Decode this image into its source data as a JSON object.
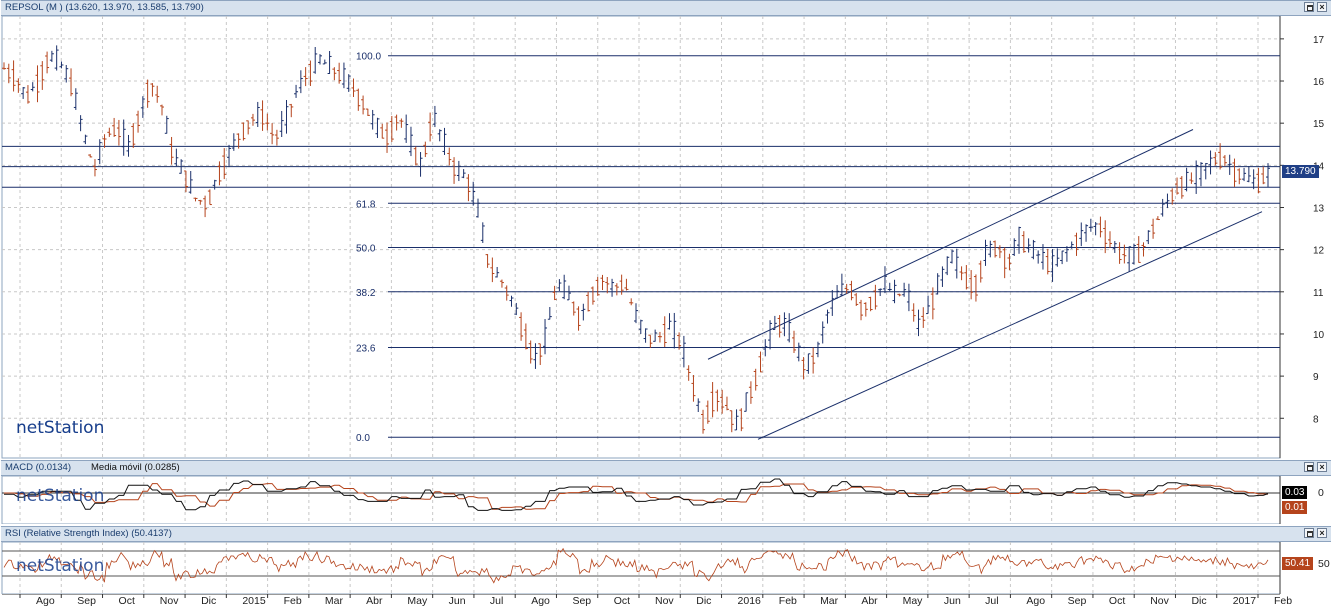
{
  "panels": {
    "price": {
      "title": "REPSOL (M ) (13.620, 13.970, 13.585, 13.790)",
      "last_price": "13.790",
      "logo": "netStation"
    },
    "macd": {
      "title": "MACD (0.0134)",
      "title2": "Media móvil (0.0285)",
      "value1": "0.03",
      "value2": "0.01",
      "axis_label": "0"
    },
    "rsi": {
      "title": "RSI (Relative Strength Index) (50.4137)",
      "value": "50.41",
      "axis_label": "50"
    }
  },
  "colors": {
    "up": "#1a2f6a",
    "down": "#b5441c",
    "macd": "#111111",
    "signal": "#b5441c",
    "rsi": "#b5441c",
    "lines": "#1a2f6a",
    "header": "#d7e2ee"
  },
  "icons": [
    "maximize-icon",
    "close-icon"
  ],
  "chart_data": {
    "type": "line",
    "title": "REPSOL (M ) (13.620, 13.970, 13.585, 13.790)",
    "y_ticks": [
      8,
      9,
      10,
      11,
      12,
      13,
      14,
      15,
      16,
      17
    ],
    "ylim": [
      7.2,
      17.4
    ],
    "x_tick_labels": [
      "Ago",
      "Sep",
      "Oct",
      "Nov",
      "Dic",
      "2015",
      "Feb",
      "Mar",
      "Abr",
      "May",
      "Jun",
      "Jul",
      "Ago",
      "Sep",
      "Oct",
      "Nov",
      "Dic",
      "2016",
      "Feb",
      "Mar",
      "Abr",
      "May",
      "Jun",
      "Jul",
      "Ago",
      "Sep",
      "Oct",
      "Nov",
      "Dic",
      "2017",
      "Feb"
    ],
    "fibonacci": [
      {
        "label": "100.0",
        "value": 16.6
      },
      {
        "label": "61.8",
        "value": 13.1
      },
      {
        "label": "50.0",
        "value": 12.05
      },
      {
        "label": "38.2",
        "value": 11.0
      },
      {
        "label": "23.6",
        "value": 9.68
      },
      {
        "label": "0.0",
        "value": 7.55
      }
    ],
    "horizontal_levels": [
      14.45,
      13.97,
      13.48
    ],
    "price_path": [
      [
        0,
        16.3
      ],
      [
        1,
        16.1
      ],
      [
        2,
        15.6
      ],
      [
        3,
        16.0
      ],
      [
        4,
        16.6
      ],
      [
        5,
        16.4
      ],
      [
        6,
        15.9
      ],
      [
        7,
        14.8
      ],
      [
        8,
        13.9
      ],
      [
        9,
        14.7
      ],
      [
        10,
        14.9
      ],
      [
        11,
        14.4
      ],
      [
        12,
        15.2
      ],
      [
        13,
        16.0
      ],
      [
        14,
        15.4
      ],
      [
        15,
        14.2
      ],
      [
        16,
        13.8
      ],
      [
        17,
        13.2
      ],
      [
        18,
        13.1
      ],
      [
        19,
        13.8
      ],
      [
        20,
        14.3
      ],
      [
        21,
        14.8
      ],
      [
        22,
        15.1
      ],
      [
        23,
        15.2
      ],
      [
        24,
        14.6
      ],
      [
        25,
        15.1
      ],
      [
        26,
        15.8
      ],
      [
        27,
        16.2
      ],
      [
        28,
        16.5
      ],
      [
        29,
        16.3
      ],
      [
        30,
        16.1
      ],
      [
        31,
        15.8
      ],
      [
        32,
        15.4
      ],
      [
        33,
        14.9
      ],
      [
        34,
        14.7
      ],
      [
        35,
        15.2
      ],
      [
        36,
        14.5
      ],
      [
        37,
        14.0
      ],
      [
        38,
        15.2
      ],
      [
        39,
        14.5
      ],
      [
        40,
        13.9
      ],
      [
        41,
        13.7
      ],
      [
        42,
        12.9
      ],
      [
        43,
        11.6
      ],
      [
        44,
        11.3
      ],
      [
        45,
        10.8
      ],
      [
        46,
        10.1
      ],
      [
        47,
        9.4
      ],
      [
        48,
        9.9
      ],
      [
        49,
        11.2
      ],
      [
        50,
        10.9
      ],
      [
        51,
        10.4
      ],
      [
        52,
        10.9
      ],
      [
        53,
        11.3
      ],
      [
        54,
        11.1
      ],
      [
        55,
        11.2
      ],
      [
        56,
        10.4
      ],
      [
        57,
        9.9
      ],
      [
        58,
        9.9
      ],
      [
        59,
        10.2
      ],
      [
        60,
        9.8
      ],
      [
        61,
        8.8
      ],
      [
        62,
        7.9
      ],
      [
        63,
        8.6
      ],
      [
        64,
        8.3
      ],
      [
        65,
        7.8
      ],
      [
        66,
        8.5
      ],
      [
        67,
        9.3
      ],
      [
        68,
        10.1
      ],
      [
        69,
        10.3
      ],
      [
        70,
        9.8
      ],
      [
        71,
        9.2
      ],
      [
        72,
        9.5
      ],
      [
        73,
        10.5
      ],
      [
        74,
        11.0
      ],
      [
        75,
        11.1
      ],
      [
        76,
        10.6
      ],
      [
        77,
        10.8
      ],
      [
        78,
        11.2
      ],
      [
        79,
        10.9
      ],
      [
        80,
        11.0
      ],
      [
        81,
        10.2
      ],
      [
        82,
        10.6
      ],
      [
        83,
        11.3
      ],
      [
        84,
        11.8
      ],
      [
        85,
        11.4
      ],
      [
        86,
        11.1
      ],
      [
        87,
        11.9
      ],
      [
        88,
        12.1
      ],
      [
        89,
        11.7
      ],
      [
        90,
        12.3
      ],
      [
        91,
        12.0
      ],
      [
        92,
        11.8
      ],
      [
        93,
        11.6
      ],
      [
        94,
        11.9
      ],
      [
        95,
        12.2
      ],
      [
        96,
        12.5
      ],
      [
        97,
        12.6
      ],
      [
        98,
        12.2
      ],
      [
        99,
        11.9
      ],
      [
        100,
        11.8
      ],
      [
        101,
        12.1
      ],
      [
        102,
        12.6
      ],
      [
        103,
        13.1
      ],
      [
        104,
        13.5
      ],
      [
        105,
        13.6
      ],
      [
        106,
        13.8
      ],
      [
        107,
        14.1
      ],
      [
        108,
        14.2
      ],
      [
        109,
        13.9
      ],
      [
        110,
        13.7
      ],
      [
        111,
        13.6
      ],
      [
        112,
        13.8
      ]
    ],
    "macd_range": [
      -1,
      1
    ],
    "rsi_range": [
      20,
      80
    ]
  }
}
